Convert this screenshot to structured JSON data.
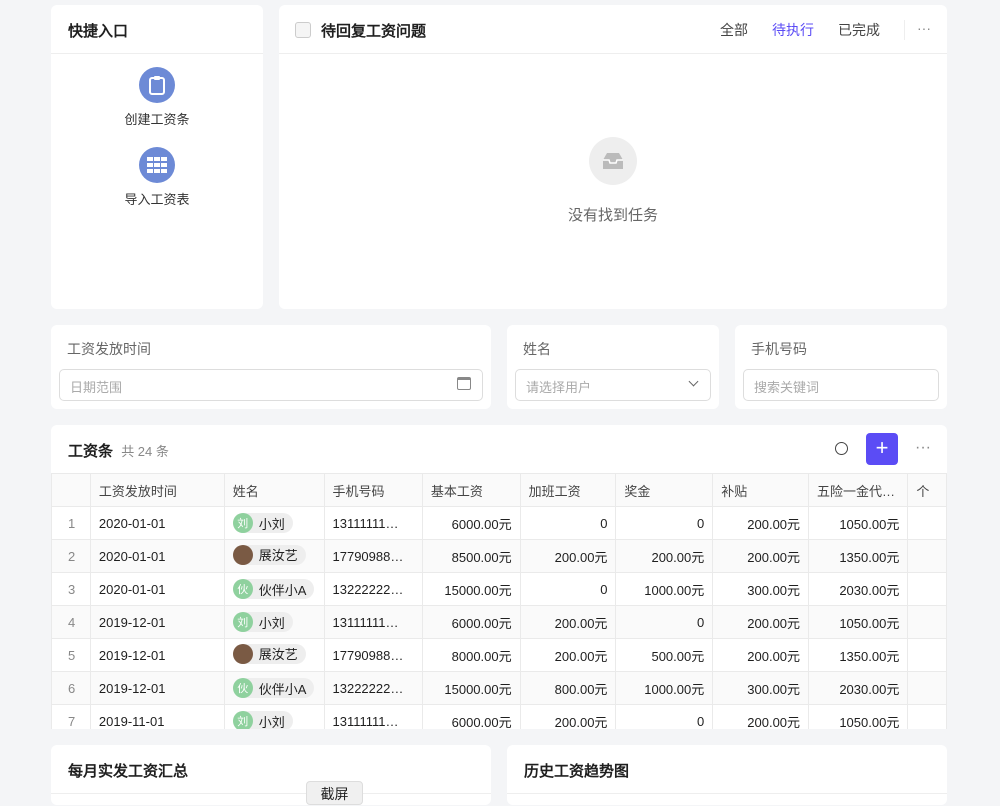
{
  "quick": {
    "title": "快捷入口",
    "items": [
      {
        "label": "创建工资条",
        "icon": "clipboard-icon"
      },
      {
        "label": "导入工资表",
        "icon": "table-icon"
      }
    ]
  },
  "tasks": {
    "title": "待回复工资问题",
    "tabs": [
      "全部",
      "待执行",
      "已完成"
    ],
    "active_tab": "待执行",
    "empty": "没有找到任务",
    "accent": "#5b4cf5"
  },
  "filters": {
    "date": {
      "label": "工资发放时间",
      "placeholder": "日期范围"
    },
    "name": {
      "label": "姓名",
      "placeholder": "请选择用户"
    },
    "phone": {
      "label": "手机号码",
      "placeholder": "搜索关键词"
    }
  },
  "table": {
    "title": "工资条",
    "count": "共 24 条",
    "columns": [
      "",
      "工资发放时间",
      "姓名",
      "手机号码",
      "基本工资",
      "加班工资",
      "奖金",
      "补贴",
      "五险一金代…",
      "个"
    ],
    "rows": [
      [
        "1",
        "2020-01-01",
        "刘",
        "小刘",
        "13111111…",
        "6000.00元",
        "0",
        "0",
        "200.00元",
        "1050.00元"
      ],
      [
        "2",
        "2020-01-01",
        "",
        "展汝艺",
        "17790988…",
        "8500.00元",
        "200.00元",
        "200.00元",
        "200.00元",
        "1350.00元"
      ],
      [
        "3",
        "2020-01-01",
        "伙",
        "伙伴小A",
        "13222222…",
        "15000.00元",
        "0",
        "1000.00元",
        "300.00元",
        "2030.00元"
      ],
      [
        "4",
        "2019-12-01",
        "刘",
        "小刘",
        "13111111…",
        "6000.00元",
        "200.00元",
        "0",
        "200.00元",
        "1050.00元"
      ],
      [
        "5",
        "2019-12-01",
        "",
        "展汝艺",
        "17790988…",
        "8000.00元",
        "200.00元",
        "500.00元",
        "200.00元",
        "1350.00元"
      ],
      [
        "6",
        "2019-12-01",
        "伙",
        "伙伴小A",
        "13222222…",
        "15000.00元",
        "800.00元",
        "1000.00元",
        "300.00元",
        "2030.00元"
      ],
      [
        "7",
        "2019-11-01",
        "刘",
        "小刘",
        "13111111…",
        "6000.00元",
        "200.00元",
        "0",
        "200.00元",
        "1050.00元"
      ]
    ]
  },
  "bottom": {
    "left_title": "每月实发工资汇总",
    "right_title": "历史工资趋势图",
    "screenshot_btn": "截屏"
  }
}
